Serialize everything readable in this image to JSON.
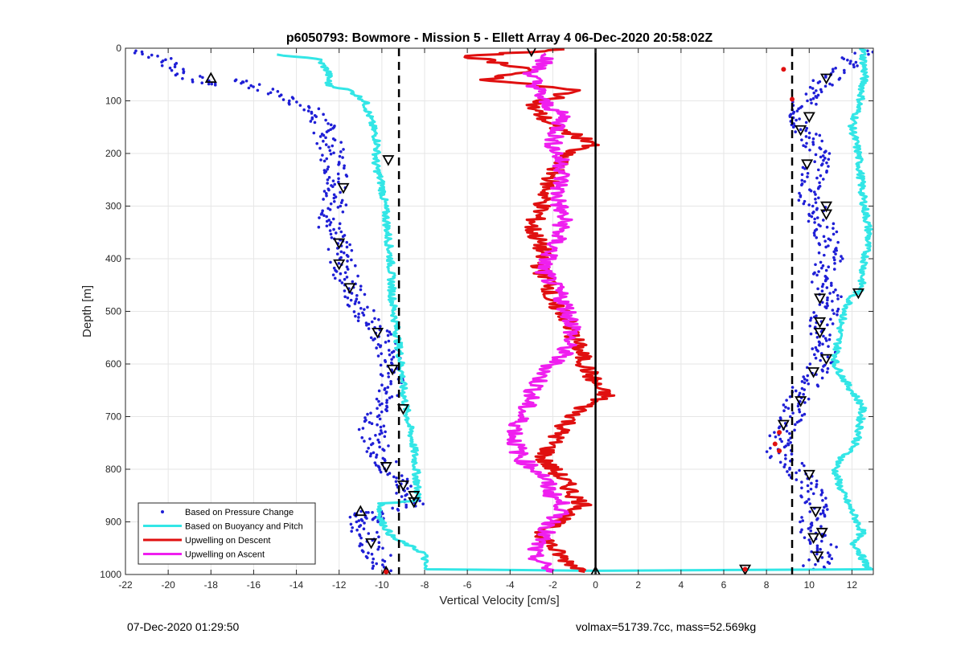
{
  "chart_data": {
    "type": "scatter",
    "title": "p6050793: Bowmore - Mission 5 - Ellett Array 4 06-Dec-2020 20:58:02Z",
    "xlabel": "Vertical Velocity [cm/s]",
    "ylabel": "Depth [m]",
    "xlim": [
      -22,
      13
    ],
    "ylim": [
      1000,
      0
    ],
    "y_reversed": true,
    "xticks": [
      -22,
      -20,
      -18,
      -16,
      -14,
      -12,
      -10,
      -8,
      -6,
      -4,
      -2,
      0,
      2,
      4,
      6,
      8,
      10,
      12
    ],
    "yticks": [
      0,
      100,
      200,
      300,
      400,
      500,
      600,
      700,
      800,
      900,
      1000
    ],
    "grid": true,
    "legend_position": "bottom-left",
    "reference_lines": {
      "zero": 0,
      "dashed": [
        -9.2,
        9.2
      ]
    },
    "series": [
      {
        "name": "Based on Pressure Change",
        "style": "dots",
        "color": "#1f1fd6",
        "groups": [
          {
            "x": [
              -21.5,
              -20.5,
              -19.5,
              -18.8,
              -18.0,
              -16.5,
              -15.5,
              -14.0,
              -13.0,
              -12.5,
              -12.3,
              -12.0,
              -12.2,
              -12.5,
              -12.0,
              -11.8,
              -11.5,
              -11.0,
              -10.5,
              -10.0,
              -9.6,
              -9.5,
              -9.8,
              -10.5,
              -10.2,
              -9.8,
              -9.5,
              -9.0,
              -8.8,
              -8.5,
              -8.3,
              -9.8,
              -10.5,
              -11.2,
              -10.8,
              -10.4,
              -10.0,
              -9.8
            ],
            "y": [
              5,
              15,
              40,
              60,
              70,
              60,
              80,
              100,
              130,
              170,
              210,
              250,
              300,
              340,
              380,
              420,
              450,
              490,
              520,
              550,
              600,
              640,
              680,
              720,
              760,
              790,
              810,
              830,
              850,
              860,
              870,
              880,
              900,
              880,
              920,
              950,
              975,
              995
            ]
          },
          {
            "x": [
              12.5,
              11.5,
              10.5,
              9.8,
              9.5,
              10.0,
              10.5,
              10.2,
              10.0,
              10.5,
              10.8,
              11.0,
              10.5,
              11.0,
              10.8,
              10.5,
              10.8,
              10.5,
              10.3,
              9.5,
              9.2,
              8.8,
              8.5,
              8.8,
              9.5,
              10.0,
              10.5,
              10.0,
              10.3,
              10.8,
              10.5,
              10.2
            ],
            "y": [
              5,
              40,
              70,
              100,
              130,
              170,
              200,
              240,
              280,
              320,
              360,
              400,
              440,
              470,
              500,
              530,
              560,
              600,
              620,
              660,
              700,
              730,
              760,
              780,
              800,
              840,
              870,
              900,
              930,
              950,
              970,
              990
            ]
          }
        ]
      },
      {
        "name": "Based on Buoyancy and Pitch",
        "style": "line",
        "color": "#33e6e6",
        "groups": [
          {
            "x": [
              -15.0,
              -13.0,
              -12.5,
              -12.5,
              -11.5,
              -10.8,
              -10.5,
              -10.2,
              -10.3,
              -10.0,
              -9.8,
              -9.6,
              -9.5,
              -9.3,
              -9.1,
              -9.0,
              -8.8,
              -8.5,
              -8.4,
              -8.3,
              -10.0,
              -10.1,
              -10.0,
              -9.5,
              -8.0,
              -8.0,
              0.0,
              13.0
            ],
            "y": [
              12,
              20,
              45,
              70,
              80,
              100,
              140,
              180,
              220,
              260,
              320,
              400,
              480,
              540,
              600,
              650,
              700,
              760,
              800,
              860,
              865,
              880,
              900,
              930,
              960,
              990,
              993,
              990
            ]
          },
          {
            "x": [
              12.5,
              12.6,
              12.4,
              12.0,
              12.3,
              12.5,
              12.8,
              12.4,
              12.0,
              11.5,
              11.2,
              11.8,
              12.5,
              12.3,
              12.0,
              11.5,
              11.2,
              11.5,
              12.0,
              12.5,
              12.0,
              12.3,
              12.5,
              12.8
            ],
            "y": [
              0,
              50,
              100,
              150,
              200,
              280,
              350,
              460,
              470,
              520,
              600,
              640,
              680,
              740,
              760,
              780,
              800,
              840,
              880,
              920,
              940,
              950,
              970,
              990
            ]
          }
        ]
      },
      {
        "name": "Upwelling on Descent",
        "style": "line",
        "color": "#e01010",
        "groups": [
          {
            "x": [
              -1.5,
              -6.0,
              -3.0,
              -5.0,
              -1.0,
              -3.0,
              -2.0,
              0.0,
              -1.5,
              -2.2,
              -2.5,
              -3.0,
              -2.5,
              -2.6,
              -2.0,
              -2.3,
              -1.5,
              -1.0,
              -0.5,
              0.0,
              0.5,
              -0.5,
              -1.5,
              -2.0,
              -2.5,
              -2.0,
              -1.5,
              -1.0,
              -0.5,
              -1.5,
              -2.5,
              -2.0,
              -1.5,
              -0.5
            ],
            "y": [
              2,
              15,
              40,
              60,
              80,
              110,
              150,
              180,
              200,
              260,
              300,
              340,
              380,
              420,
              450,
              480,
              500,
              550,
              600,
              640,
              660,
              680,
              720,
              750,
              780,
              800,
              820,
              850,
              870,
              890,
              920,
              950,
              970,
              995
            ]
          }
        ]
      },
      {
        "name": "Upwelling on Ascent",
        "style": "line",
        "color": "#ef1fef",
        "groups": [
          {
            "x": [
              -2.0,
              -3.0,
              -2.5,
              -1.5,
              -2.0,
              -1.5,
              -1.8,
              -1.5,
              -2.0,
              -2.5,
              -1.5,
              -1.0,
              -1.5,
              -2.5,
              -3.0,
              -3.5,
              -3.8,
              -3.5,
              -2.5,
              -2.0,
              -1.5,
              -2.0,
              -2.5,
              -3.0,
              -2.5,
              -2.0
            ],
            "y": [
              10,
              50,
              100,
              130,
              180,
              230,
              280,
              330,
              380,
              420,
              480,
              530,
              580,
              620,
              660,
              700,
              740,
              780,
              810,
              850,
              870,
              900,
              930,
              960,
              980,
              995
            ]
          }
        ]
      }
    ],
    "triangle_markers": {
      "up": [
        [
          -18.0,
          57
        ],
        [
          -11.0,
          880
        ],
        [
          -9.8,
          995
        ],
        [
          0.0,
          995
        ]
      ],
      "down": [
        [
          -3.0,
          5
        ],
        [
          10.8,
          57
        ],
        [
          -9.7,
          212
        ],
        [
          -11.8,
          265
        ],
        [
          -12.0,
          370
        ],
        [
          -12.0,
          410
        ],
        [
          -11.5,
          455
        ],
        [
          -10.2,
          540
        ],
        [
          -9.5,
          610
        ],
        [
          -9.0,
          685
        ],
        [
          -9.8,
          795
        ],
        [
          -9.0,
          830
        ],
        [
          -8.5,
          850
        ],
        [
          -8.5,
          862
        ],
        [
          -10.5,
          940
        ],
        [
          10.0,
          130
        ],
        [
          9.6,
          155
        ],
        [
          9.9,
          220
        ],
        [
          10.8,
          300
        ],
        [
          10.8,
          315
        ],
        [
          12.3,
          465
        ],
        [
          10.5,
          475
        ],
        [
          10.5,
          520
        ],
        [
          10.5,
          540
        ],
        [
          10.8,
          590
        ],
        [
          10.2,
          615
        ],
        [
          9.6,
          670
        ],
        [
          8.8,
          715
        ],
        [
          10.0,
          810
        ],
        [
          10.3,
          880
        ],
        [
          10.2,
          930
        ],
        [
          10.6,
          920
        ],
        [
          10.4,
          965
        ],
        [
          7.0,
          990
        ]
      ]
    },
    "red_markers": [
      [
        8.8,
        40
      ],
      [
        9.2,
        97
      ],
      [
        8.6,
        730
      ],
      [
        8.4,
        752
      ],
      [
        8.6,
        765
      ],
      [
        -9.8,
        995
      ],
      [
        7.0,
        990
      ]
    ]
  },
  "footer": {
    "timestamp": "07-Dec-2020 01:29:50",
    "info": "volmax=51739.7cc, mass=52.569kg"
  }
}
